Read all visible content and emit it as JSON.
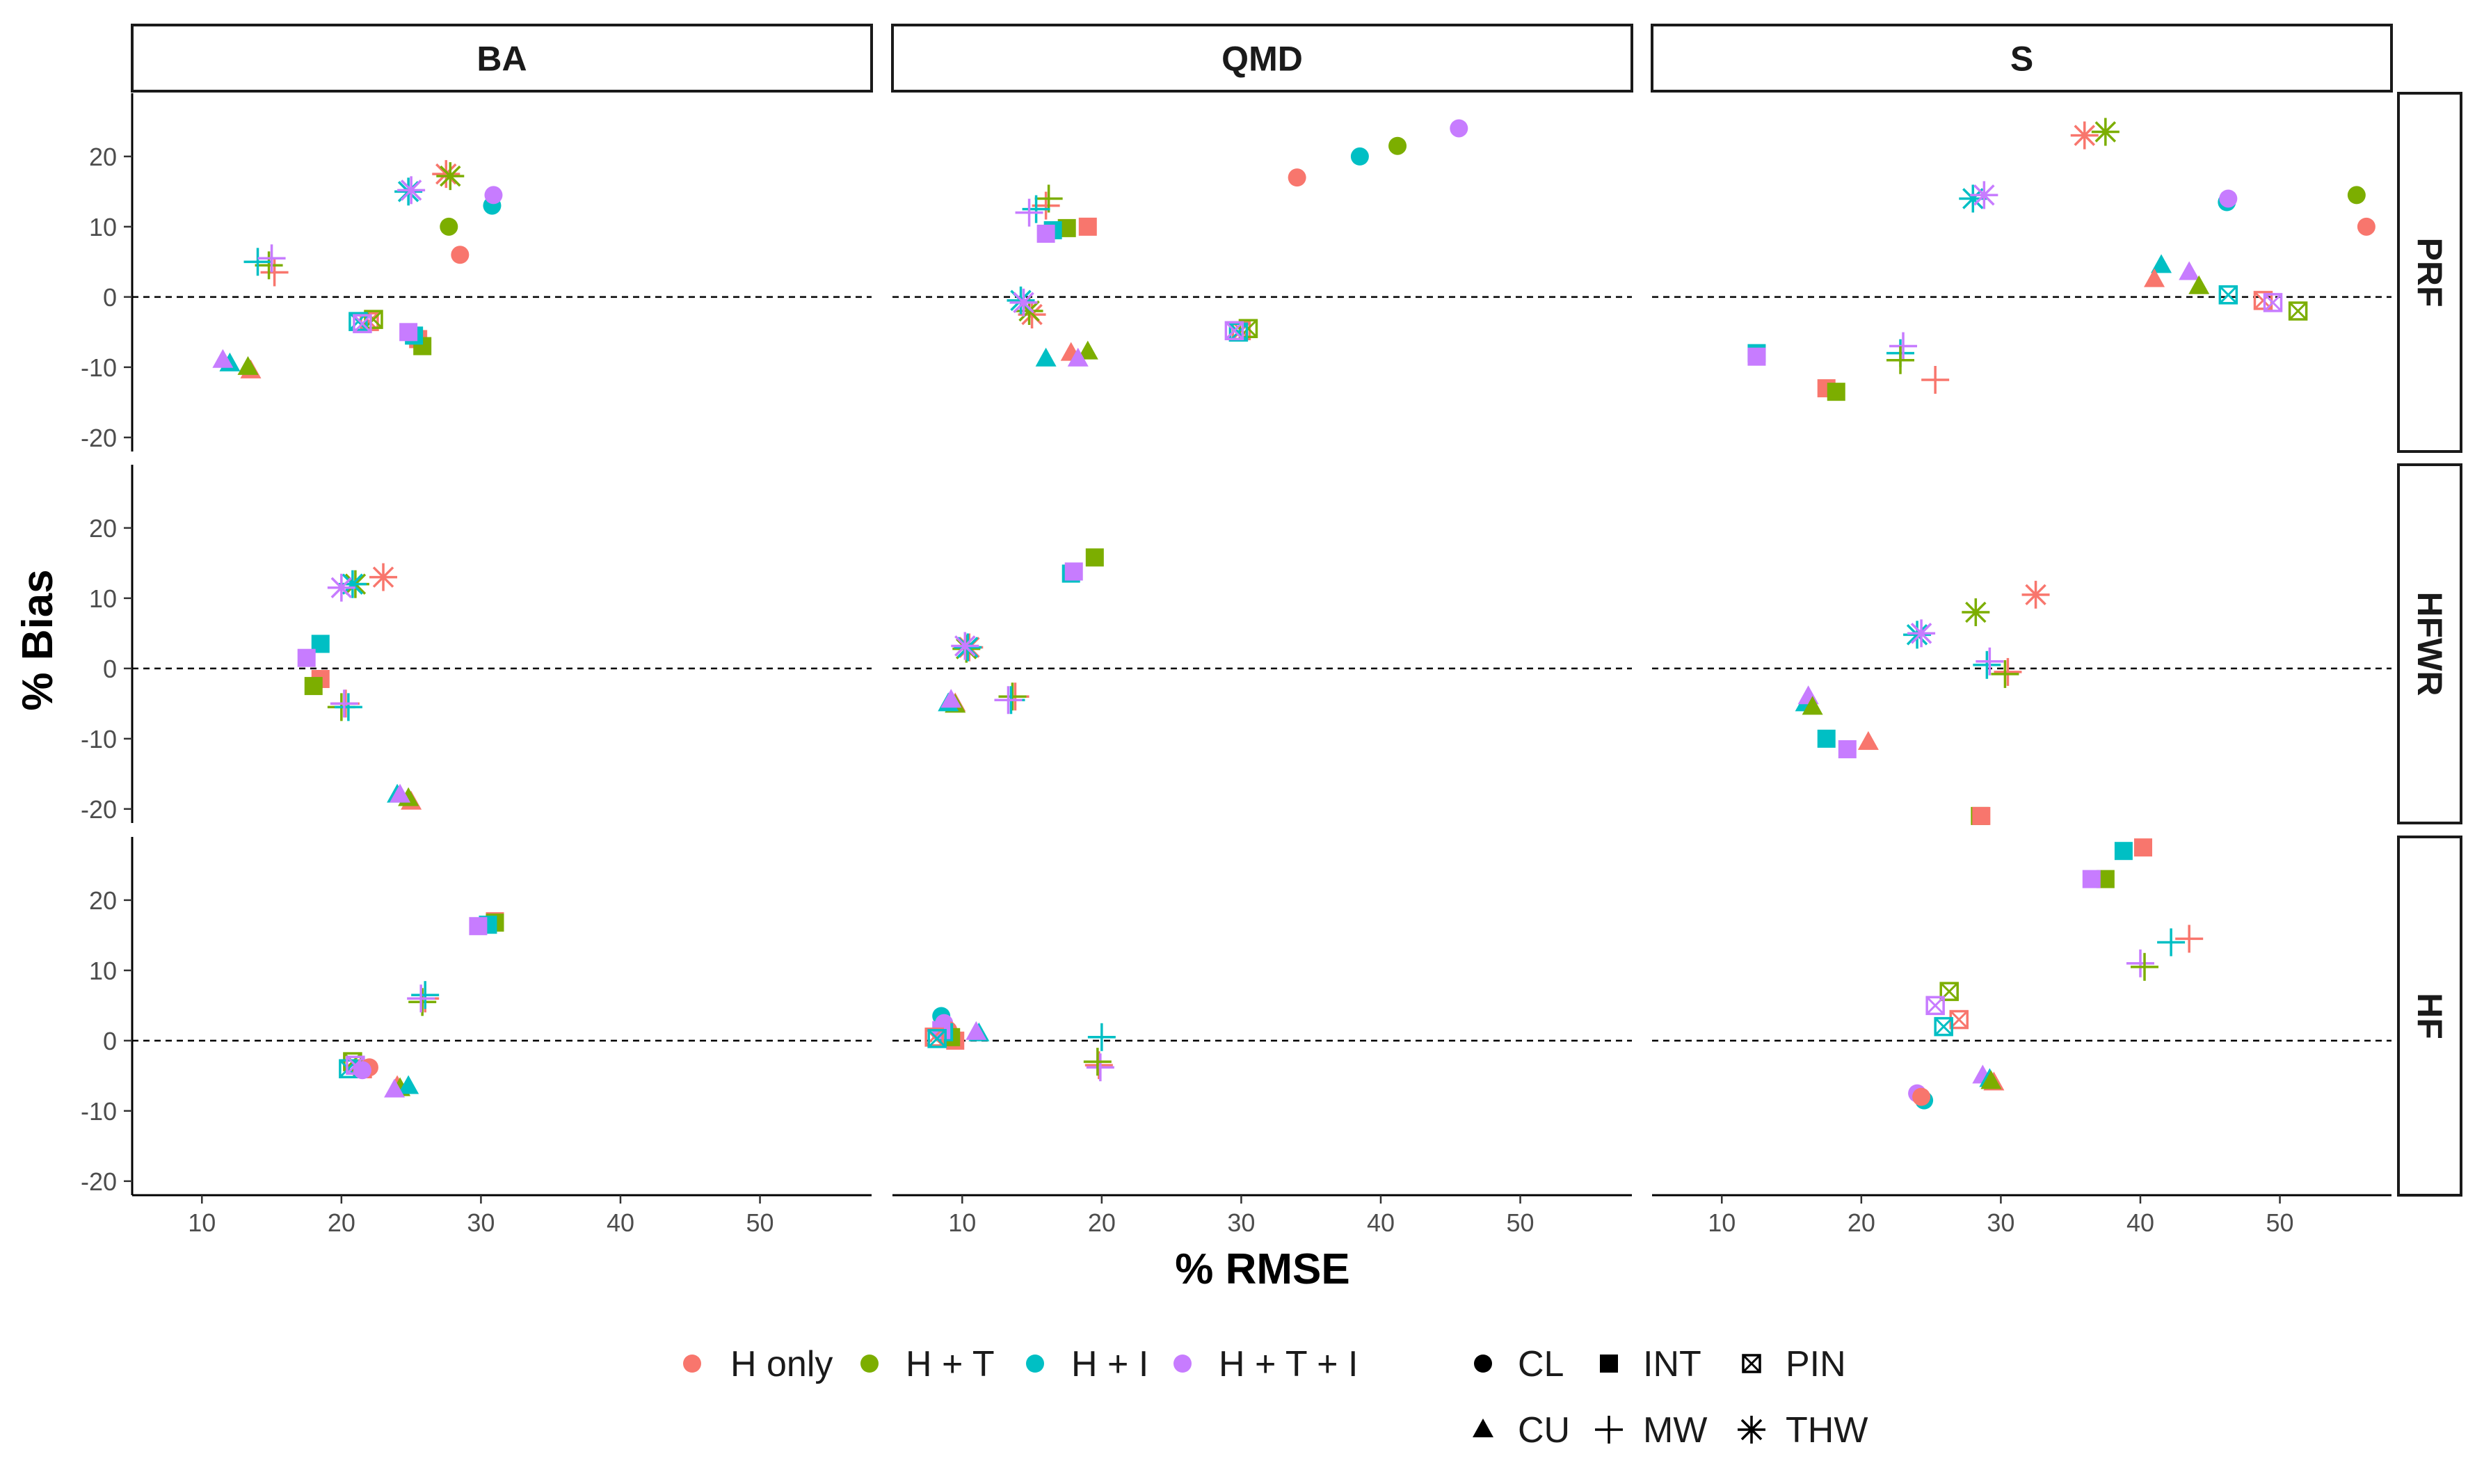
{
  "chart_data": {
    "type": "scatter",
    "xlabel": "% RMSE",
    "ylabel": "% Bias",
    "columns": [
      "BA",
      "QMD",
      "S"
    ],
    "rows": [
      "PRF",
      "HFWR",
      "HF"
    ],
    "xlim": [
      5,
      58
    ],
    "ylim": [
      -22,
      29
    ],
    "xticks": [
      10,
      20,
      30,
      40,
      50
    ],
    "yticks": [
      -20,
      -10,
      0,
      10,
      20
    ],
    "reference_line_y": 0,
    "color_legend": [
      {
        "key": "H",
        "label": "H only",
        "color": "#F8766D"
      },
      {
        "key": "HT",
        "label": "H + T",
        "color": "#7CAE00"
      },
      {
        "key": "HI",
        "label": "H + I",
        "color": "#00BFC4"
      },
      {
        "key": "HTI",
        "label": "H + T + I",
        "color": "#C77CFF"
      }
    ],
    "shape_legend": [
      {
        "key": "CL",
        "label": "CL"
      },
      {
        "key": "INT",
        "label": "INT"
      },
      {
        "key": "PIN",
        "label": "PIN"
      },
      {
        "key": "CU",
        "label": "CU"
      },
      {
        "key": "MW",
        "label": "MW"
      },
      {
        "key": "THW",
        "label": "THW"
      }
    ],
    "panels": [
      {
        "col": "BA",
        "row": "PRF",
        "points": [
          [
            15.2,
            3.5,
            "H",
            "MW"
          ],
          [
            14.8,
            4.5,
            "HT",
            "MW"
          ],
          [
            14.0,
            5.0,
            "HI",
            "MW"
          ],
          [
            15.0,
            5.5,
            "HTI",
            "MW"
          ],
          [
            28.5,
            6.0,
            "H",
            "CL"
          ],
          [
            27.7,
            10.0,
            "HT",
            "CL"
          ],
          [
            30.8,
            13.0,
            "HI",
            "CL"
          ],
          [
            30.9,
            14.5,
            "HTI",
            "CL"
          ],
          [
            27.5,
            17.5,
            "H",
            "THW"
          ],
          [
            27.8,
            17.2,
            "HT",
            "THW"
          ],
          [
            24.8,
            15.0,
            "HI",
            "THW"
          ],
          [
            25.0,
            15.2,
            "HTI",
            "THW"
          ],
          [
            13.5,
            -10.5,
            "H",
            "CU"
          ],
          [
            13.3,
            -10.0,
            "HT",
            "CU"
          ],
          [
            12.0,
            -9.5,
            "HI",
            "CU"
          ],
          [
            11.5,
            -9.0,
            "HTI",
            "CU"
          ],
          [
            25.5,
            -6.0,
            "H",
            "INT"
          ],
          [
            25.8,
            -7.0,
            "HT",
            "INT"
          ],
          [
            25.2,
            -5.5,
            "HI",
            "INT"
          ],
          [
            24.8,
            -5.0,
            "HTI",
            "INT"
          ],
          [
            22.0,
            -3.5,
            "H",
            "PIN"
          ],
          [
            22.3,
            -3.2,
            "HT",
            "PIN"
          ],
          [
            21.2,
            -3.5,
            "HI",
            "PIN"
          ],
          [
            21.5,
            -3.8,
            "HTI",
            "PIN"
          ]
        ]
      },
      {
        "col": "QMD",
        "row": "PRF",
        "points": [
          [
            16.0,
            13.0,
            "H",
            "MW"
          ],
          [
            16.2,
            14.0,
            "HT",
            "MW"
          ],
          [
            15.3,
            12.5,
            "HI",
            "MW"
          ],
          [
            14.8,
            12.0,
            "HTI",
            "MW"
          ],
          [
            34.0,
            17.0,
            "H",
            "CL"
          ],
          [
            41.2,
            21.5,
            "HT",
            "CL"
          ],
          [
            38.5,
            20.0,
            "HI",
            "CL"
          ],
          [
            45.6,
            24.0,
            "HTI",
            "CL"
          ],
          [
            19.0,
            10.0,
            "H",
            "INT"
          ],
          [
            17.5,
            9.8,
            "HT",
            "INT"
          ],
          [
            16.5,
            9.5,
            "HI",
            "INT"
          ],
          [
            16.0,
            9.0,
            "HTI",
            "INT"
          ],
          [
            15.0,
            -2.5,
            "H",
            "THW"
          ],
          [
            14.8,
            -2.0,
            "HT",
            "THW"
          ],
          [
            14.2,
            -0.5,
            "HI",
            "THW"
          ],
          [
            14.4,
            -0.8,
            "HTI",
            "THW"
          ],
          [
            17.8,
            -8.0,
            "H",
            "CU"
          ],
          [
            19.0,
            -7.8,
            "HT",
            "CU"
          ],
          [
            16.0,
            -8.8,
            "HI",
            "CU"
          ],
          [
            18.3,
            -8.8,
            "HTI",
            "CU"
          ],
          [
            30.0,
            -4.8,
            "H",
            "PIN"
          ],
          [
            30.5,
            -4.5,
            "HT",
            "PIN"
          ],
          [
            29.8,
            -5.0,
            "HI",
            "PIN"
          ],
          [
            29.5,
            -4.8,
            "HTI",
            "PIN"
          ]
        ]
      },
      {
        "col": "S",
        "row": "PRF",
        "points": [
          [
            36.0,
            23.0,
            "H",
            "THW"
          ],
          [
            37.5,
            23.5,
            "HT",
            "THW"
          ],
          [
            28.0,
            14.0,
            "HI",
            "THW"
          ],
          [
            28.8,
            14.5,
            "HTI",
            "THW"
          ],
          [
            46.2,
            13.5,
            "HI",
            "CL"
          ],
          [
            46.3,
            14.0,
            "HTI",
            "CL"
          ],
          [
            55.5,
            14.5,
            "HT",
            "CL"
          ],
          [
            56.2,
            10.0,
            "H",
            "CL"
          ],
          [
            41.5,
            4.5,
            "HI",
            "CU"
          ],
          [
            43.5,
            3.5,
            "HTI",
            "CU"
          ],
          [
            41.0,
            2.5,
            "H",
            "CU"
          ],
          [
            44.2,
            1.5,
            "HT",
            "CU"
          ],
          [
            46.3,
            0.3,
            "HI",
            "PIN"
          ],
          [
            48.8,
            -0.5,
            "H",
            "PIN"
          ],
          [
            49.5,
            -0.8,
            "HTI",
            "PIN"
          ],
          [
            51.3,
            -2.0,
            "HT",
            "PIN"
          ],
          [
            12.5,
            -8.0,
            "HI",
            "INT"
          ],
          [
            12.5,
            -8.5,
            "HTI",
            "INT"
          ],
          [
            17.5,
            -13.0,
            "H",
            "INT"
          ],
          [
            18.2,
            -13.5,
            "HT",
            "INT"
          ],
          [
            22.8,
            -8.0,
            "HI",
            "MW"
          ],
          [
            23.0,
            -7.0,
            "HTI",
            "MW"
          ],
          [
            22.8,
            -9.0,
            "HT",
            "MW"
          ],
          [
            25.3,
            -11.8,
            "H",
            "MW"
          ]
        ]
      },
      {
        "col": "BA",
        "row": "HFWR",
        "points": [
          [
            23.0,
            13.0,
            "H",
            "THW"
          ],
          [
            21.0,
            12.0,
            "HT",
            "THW"
          ],
          [
            20.8,
            12.0,
            "HI",
            "THW"
          ],
          [
            20.0,
            11.5,
            "HTI",
            "THW"
          ],
          [
            18.5,
            -1.5,
            "H",
            "INT"
          ],
          [
            18.0,
            -2.5,
            "HT",
            "INT"
          ],
          [
            18.5,
            3.5,
            "HI",
            "INT"
          ],
          [
            17.5,
            1.5,
            "HTI",
            "INT"
          ],
          [
            20.3,
            -5.0,
            "H",
            "MW"
          ],
          [
            20.0,
            -5.5,
            "HT",
            "MW"
          ],
          [
            20.5,
            -5.5,
            "HI",
            "MW"
          ],
          [
            20.2,
            -5.0,
            "HTI",
            "MW"
          ],
          [
            25.0,
            -19.0,
            "H",
            "CU"
          ],
          [
            24.8,
            -18.5,
            "HT",
            "CU"
          ],
          [
            24.0,
            -18.0,
            "HI",
            "CU"
          ],
          [
            24.2,
            -18.0,
            "HTI",
            "CU"
          ]
        ]
      },
      {
        "col": "QMD",
        "row": "HFWR",
        "points": [
          [
            19.5,
            15.8,
            "HT",
            "INT"
          ],
          [
            17.8,
            13.5,
            "HI",
            "INT"
          ],
          [
            18.0,
            13.8,
            "HTI",
            "INT"
          ],
          [
            10.5,
            3.0,
            "H",
            "THW"
          ],
          [
            10.3,
            2.8,
            "HT",
            "THW"
          ],
          [
            10.4,
            3.0,
            "HI",
            "THW"
          ],
          [
            10.2,
            3.2,
            "HTI",
            "THW"
          ],
          [
            13.8,
            -4.0,
            "H",
            "MW"
          ],
          [
            13.6,
            -4.0,
            "HT",
            "MW"
          ],
          [
            13.5,
            -4.5,
            "HI",
            "MW"
          ],
          [
            13.3,
            -4.5,
            "HTI",
            "MW"
          ],
          [
            9.5,
            -5.0,
            "H",
            "CU"
          ],
          [
            9.5,
            -5.2,
            "HT",
            "CU"
          ],
          [
            9.0,
            -5.0,
            "HI",
            "CU"
          ],
          [
            9.2,
            -4.5,
            "HTI",
            "CU"
          ]
        ]
      },
      {
        "col": "S",
        "row": "HFWR",
        "points": [
          [
            32.5,
            10.5,
            "H",
            "THW"
          ],
          [
            28.2,
            8.0,
            "HT",
            "THW"
          ],
          [
            24.0,
            4.8,
            "HI",
            "THW"
          ],
          [
            24.3,
            5.0,
            "HTI",
            "THW"
          ],
          [
            29.0,
            0.5,
            "HI",
            "MW"
          ],
          [
            29.2,
            1.0,
            "HTI",
            "MW"
          ],
          [
            30.5,
            -0.5,
            "H",
            "MW"
          ],
          [
            30.3,
            -0.8,
            "HT",
            "MW"
          ],
          [
            16.0,
            -5.0,
            "HI",
            "CU"
          ],
          [
            16.2,
            -4.0,
            "HTI",
            "CU"
          ],
          [
            16.5,
            -5.5,
            "HT",
            "CU"
          ],
          [
            20.5,
            -10.5,
            "H",
            "CU"
          ],
          [
            17.5,
            -10.0,
            "HI",
            "INT"
          ],
          [
            19.0,
            -11.5,
            "HTI",
            "INT"
          ],
          [
            28.5,
            -21.0,
            "HT",
            "INT"
          ],
          [
            28.6,
            -21.0,
            "H",
            "INT"
          ]
        ]
      },
      {
        "col": "BA",
        "row": "HF",
        "points": [
          [
            31.0,
            17.0,
            "H",
            "INT"
          ],
          [
            31.0,
            16.8,
            "HT",
            "INT"
          ],
          [
            30.5,
            16.5,
            "HI",
            "INT"
          ],
          [
            29.8,
            16.3,
            "HTI",
            "INT"
          ],
          [
            26.0,
            6.0,
            "H",
            "MW"
          ],
          [
            25.8,
            5.5,
            "HT",
            "MW"
          ],
          [
            26.0,
            6.5,
            "HI",
            "MW"
          ],
          [
            25.7,
            6.0,
            "HTI",
            "MW"
          ],
          [
            21.5,
            -4.0,
            "H",
            "PIN"
          ],
          [
            20.8,
            -3.0,
            "HT",
            "PIN"
          ],
          [
            20.5,
            -4.0,
            "HI",
            "PIN"
          ],
          [
            21.0,
            -3.5,
            "HTI",
            "PIN"
          ],
          [
            22.0,
            -3.8,
            "H",
            "CL"
          ],
          [
            21.5,
            -4.2,
            "HTI",
            "CL"
          ],
          [
            24.0,
            -6.5,
            "H",
            "CU"
          ],
          [
            24.2,
            -6.8,
            "HT",
            "CU"
          ],
          [
            24.8,
            -6.5,
            "HI",
            "CU"
          ],
          [
            23.8,
            -7.0,
            "HTI",
            "CU"
          ]
        ]
      },
      {
        "col": "QMD",
        "row": "HF",
        "points": [
          [
            8.5,
            3.5,
            "HI",
            "CL"
          ],
          [
            8.7,
            2.5,
            "HTI",
            "CL"
          ],
          [
            9.0,
            1.5,
            "H",
            "CL"
          ],
          [
            9.5,
            0.0,
            "H",
            "INT"
          ],
          [
            9.2,
            0.5,
            "HT",
            "INT"
          ],
          [
            8.7,
            1.2,
            "HI",
            "INT"
          ],
          [
            8.5,
            1.5,
            "HTI",
            "INT"
          ],
          [
            8.0,
            0.5,
            "H",
            "PIN"
          ],
          [
            8.2,
            0.3,
            "HI",
            "PIN"
          ],
          [
            11.2,
            1.0,
            "HI",
            "CU"
          ],
          [
            11.0,
            1.2,
            "HTI",
            "CU"
          ],
          [
            20.0,
            0.5,
            "HI",
            "MW"
          ],
          [
            19.8,
            -3.5,
            "H",
            "MW"
          ],
          [
            19.9,
            -3.8,
            "HTI",
            "MW"
          ],
          [
            19.7,
            -3.0,
            "HT",
            "MW"
          ]
        ]
      },
      {
        "col": "S",
        "row": "HF",
        "points": [
          [
            40.2,
            27.5,
            "H",
            "INT"
          ],
          [
            38.8,
            27.0,
            "HI",
            "INT"
          ],
          [
            37.5,
            23.0,
            "HT",
            "INT"
          ],
          [
            36.5,
            23.0,
            "HTI",
            "INT"
          ],
          [
            43.5,
            14.5,
            "H",
            "MW"
          ],
          [
            42.2,
            14.0,
            "HI",
            "MW"
          ],
          [
            40.0,
            11.0,
            "HTI",
            "MW"
          ],
          [
            40.3,
            10.5,
            "HT",
            "MW"
          ],
          [
            26.3,
            7.0,
            "HT",
            "PIN"
          ],
          [
            25.3,
            5.0,
            "HTI",
            "PIN"
          ],
          [
            27.0,
            3.0,
            "H",
            "PIN"
          ],
          [
            25.9,
            2.0,
            "HI",
            "PIN"
          ],
          [
            24.0,
            -7.5,
            "HTI",
            "CL"
          ],
          [
            24.5,
            -8.5,
            "HI",
            "CL"
          ],
          [
            24.3,
            -8.0,
            "H",
            "CL"
          ],
          [
            28.7,
            -5.0,
            "HTI",
            "CU"
          ],
          [
            29.2,
            -5.5,
            "HI",
            "CU"
          ],
          [
            29.5,
            -6.0,
            "H",
            "CU"
          ],
          [
            29.3,
            -5.8,
            "HT",
            "CU"
          ]
        ]
      }
    ]
  }
}
